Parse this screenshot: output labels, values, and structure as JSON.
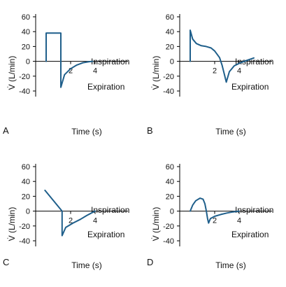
{
  "figure": {
    "ylabel": "V̇ (L/min)",
    "xlabel": "Time (s)",
    "annot_upper": "Inspiration",
    "annot_lower": "Expiration",
    "curve_color": "#1f5f8b"
  },
  "chart_data": [
    {
      "panel": "A",
      "type": "line",
      "waveform": "square",
      "ylim": [
        -40,
        60
      ],
      "y_ticks": [
        "60",
        "40",
        "20",
        "0",
        "-20",
        "-40"
      ],
      "x_ticks": [
        "2",
        "4"
      ],
      "points": [
        [
          0.0,
          0
        ],
        [
          0.0,
          38
        ],
        [
          1.2,
          38
        ],
        [
          1.2,
          0
        ],
        [
          1.2,
          -35
        ],
        [
          1.5,
          -18
        ],
        [
          2.0,
          -10
        ],
        [
          2.5,
          -5
        ],
        [
          3.0,
          -2
        ],
        [
          3.5,
          -0.5
        ],
        [
          3.8,
          0
        ]
      ]
    },
    {
      "panel": "B",
      "type": "line",
      "waveform": "decelerating",
      "ylim": [
        -40,
        60
      ],
      "y_ticks": [
        "60",
        "40",
        "20",
        "0",
        "-20",
        "-40"
      ],
      "x_ticks": [
        "2",
        "4"
      ],
      "points": [
        [
          0.0,
          0
        ],
        [
          0.0,
          42
        ],
        [
          0.2,
          30
        ],
        [
          0.5,
          24
        ],
        [
          0.9,
          21
        ],
        [
          1.3,
          20
        ],
        [
          1.7,
          18
        ],
        [
          2.0,
          14
        ],
        [
          2.4,
          5
        ],
        [
          2.6,
          -5
        ],
        [
          2.8,
          -18
        ],
        [
          2.95,
          -28
        ],
        [
          3.2,
          -14
        ],
        [
          3.6,
          -6
        ],
        [
          4.1,
          -2
        ],
        [
          4.6,
          1
        ],
        [
          5.2,
          4.5
        ]
      ]
    },
    {
      "panel": "C",
      "type": "line",
      "waveform": "descending ramp",
      "ylim": [
        -40,
        60
      ],
      "y_ticks": [
        "60",
        "40",
        "20",
        "0",
        "-20",
        "-40"
      ],
      "x_ticks": [
        "2",
        "4"
      ],
      "points": [
        [
          -0.1,
          28
        ],
        [
          1.3,
          0
        ],
        [
          1.3,
          -33
        ],
        [
          1.6,
          -22
        ],
        [
          2.2,
          -16
        ],
        [
          2.8,
          -11
        ],
        [
          3.3,
          -6
        ],
        [
          3.7,
          -2.5
        ],
        [
          4.0,
          0
        ]
      ]
    },
    {
      "panel": "D",
      "type": "line",
      "waveform": "sine",
      "ylim": [
        -40,
        60
      ],
      "y_ticks": [
        "60",
        "40",
        "20",
        "0",
        "-20",
        "-40"
      ],
      "x_ticks": [
        "2",
        "4"
      ],
      "points": [
        [
          0.0,
          0
        ],
        [
          0.2,
          8
        ],
        [
          0.45,
          14
        ],
        [
          0.8,
          17.5
        ],
        [
          1.05,
          16
        ],
        [
          1.2,
          10
        ],
        [
          1.32,
          0
        ],
        [
          1.42,
          -10
        ],
        [
          1.5,
          -16
        ],
        [
          1.65,
          -10
        ],
        [
          2.0,
          -7
        ],
        [
          2.5,
          -4.5
        ],
        [
          3.0,
          -2.5
        ],
        [
          3.5,
          -1
        ],
        [
          4.0,
          0
        ]
      ]
    }
  ]
}
